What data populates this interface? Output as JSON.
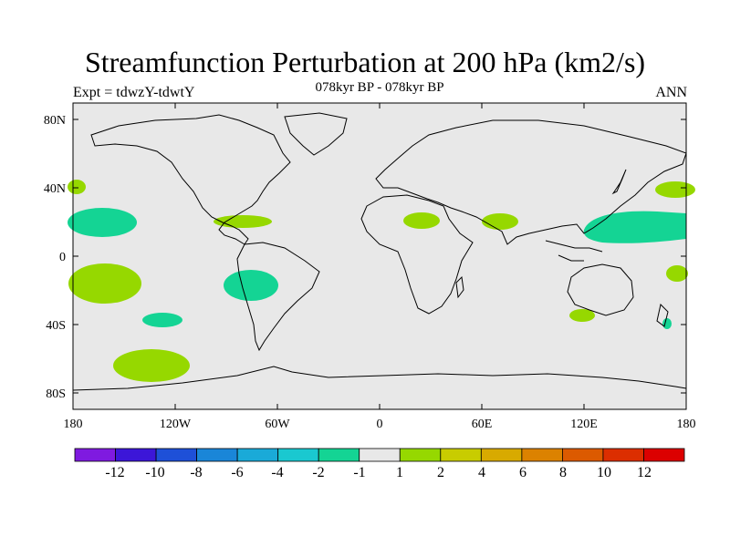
{
  "title": "Streamfunction Perturbation at 200 hPa (km2/s)",
  "expt_label": "Expt = tdwzY-tdwtY",
  "period_label": "078kyr BP - 078kyr BP",
  "season_label": "ANN",
  "lat_ticks": [
    "80N",
    "40N",
    "0",
    "40S",
    "80S"
  ],
  "lon_ticks": [
    "180",
    "120W",
    "60W",
    "0",
    "60E",
    "120E",
    "180"
  ],
  "colorbar": {
    "colors": [
      "#7f1ae0",
      "#3c16d8",
      "#1e50d8",
      "#1a86d8",
      "#1aaad8",
      "#1ac8d0",
      "#14d494",
      "#e8e8e8",
      "#96d800",
      "#c8cc00",
      "#d8aa00",
      "#dc8200",
      "#dc5a00",
      "#dc2e00",
      "#dc0000"
    ],
    "labels": [
      "-12",
      "-10",
      "-8",
      "-6",
      "-4",
      "-2",
      "-1",
      "1",
      "2",
      "4",
      "6",
      "8",
      "10",
      "12"
    ]
  },
  "map_colors": {
    "ocean": "#e8e8e8",
    "coast": "#000000",
    "positive": "#96d800",
    "negative": "#14d494"
  }
}
